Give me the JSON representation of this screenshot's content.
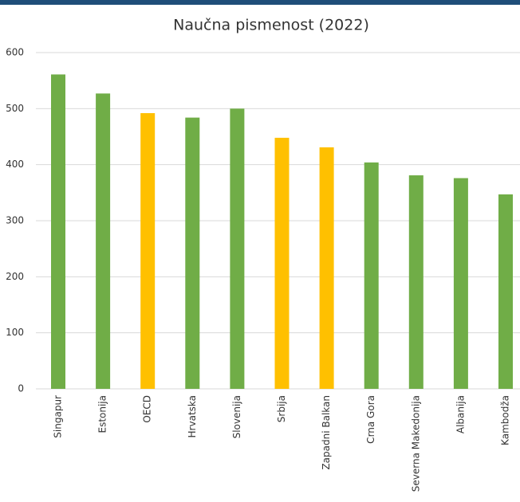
{
  "chart_data": {
    "type": "bar",
    "title": "Naučna pismenost (2022)",
    "categories": [
      "Singapur",
      "Estonija",
      "OECD",
      "Hrvatska",
      "Slovenija",
      "Srbija",
      "Zapadni Balkan",
      "Crna Gora",
      "Severna Makedonija",
      "Albanija",
      "Kambodža"
    ],
    "values": [
      561,
      527,
      492,
      484,
      500,
      448,
      431,
      404,
      381,
      376,
      347
    ],
    "colors": [
      "#70ad47",
      "#70ad47",
      "#ffc000",
      "#70ad47",
      "#70ad47",
      "#ffc000",
      "#ffc000",
      "#70ad47",
      "#70ad47",
      "#70ad47",
      "#70ad47"
    ],
    "ylim": [
      0,
      600
    ],
    "yticks": [
      0,
      100,
      200,
      300,
      400,
      500,
      600
    ],
    "grid": true
  }
}
